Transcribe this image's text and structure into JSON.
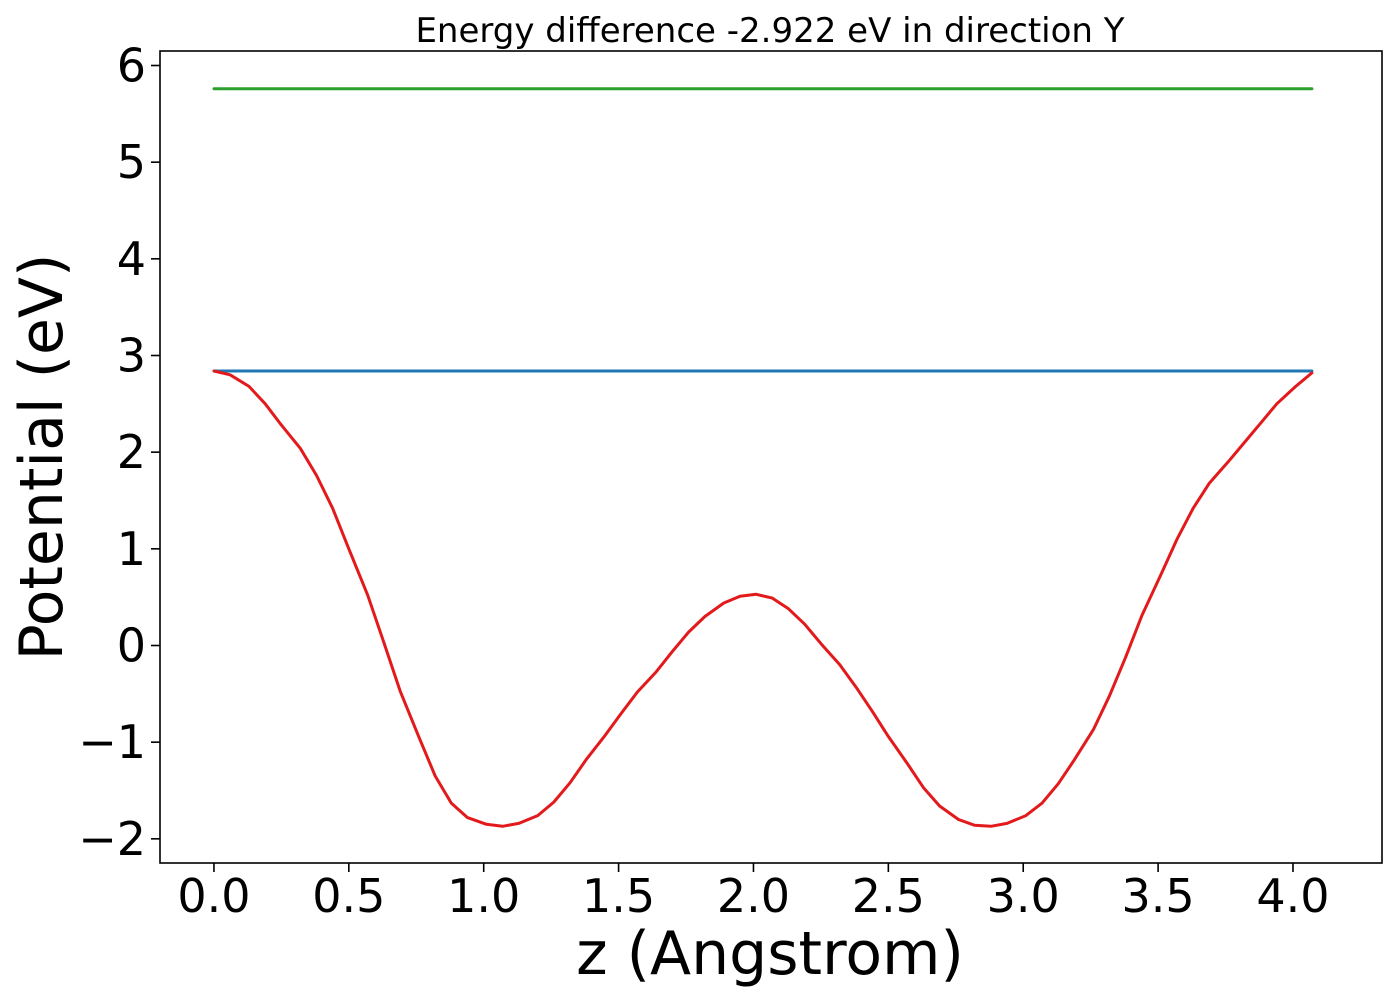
{
  "chart_data": {
    "type": "line",
    "title": "Energy difference -2.922 eV in direction Y",
    "xlabel": "z (Angstrom)",
    "ylabel": "Potential (eV)",
    "xlim": [
      -0.2,
      4.33
    ],
    "ylim": [
      -2.25,
      6.15
    ],
    "x_ticks": [
      0.0,
      0.5,
      1.0,
      1.5,
      2.0,
      2.5,
      3.0,
      3.5,
      4.0
    ],
    "x_tick_labels": [
      "0.0",
      "0.5",
      "1.0",
      "1.5",
      "2.0",
      "2.5",
      "3.0",
      "3.5",
      "4.0"
    ],
    "y_ticks": [
      -2,
      -1,
      0,
      1,
      2,
      3,
      4,
      5,
      6
    ],
    "y_tick_labels": [
      "−2",
      "−1",
      "0",
      "1",
      "2",
      "3",
      "4",
      "5",
      "6"
    ],
    "grid": false,
    "legend": "none",
    "series": [
      {
        "color": "#2ca02c",
        "x": [
          0.0,
          4.07
        ],
        "y": [
          5.76,
          5.76
        ]
      },
      {
        "color": "#1f77b4",
        "x": [
          0.0,
          4.07
        ],
        "y": [
          2.84,
          2.84
        ]
      },
      {
        "color": "#e31a1c",
        "x": [
          0.0,
          0.06,
          0.13,
          0.19,
          0.25,
          0.32,
          0.38,
          0.44,
          0.5,
          0.57,
          0.63,
          0.69,
          0.76,
          0.82,
          0.88,
          0.94,
          1.01,
          1.07,
          1.13,
          1.2,
          1.26,
          1.32,
          1.38,
          1.45,
          1.51,
          1.57,
          1.64,
          1.7,
          1.76,
          1.82,
          1.89,
          1.95,
          2.01,
          2.07,
          2.13,
          2.19,
          2.25,
          2.32,
          2.38,
          2.44,
          2.5,
          2.57,
          2.63,
          2.69,
          2.76,
          2.82,
          2.88,
          2.94,
          3.01,
          3.07,
          3.13,
          3.19,
          3.26,
          3.32,
          3.38,
          3.44,
          3.51,
          3.57,
          3.63,
          3.69,
          3.76,
          3.82,
          3.88,
          3.94,
          4.01,
          4.07
        ],
        "y": [
          2.84,
          2.8,
          2.68,
          2.5,
          2.28,
          2.04,
          1.76,
          1.42,
          1.0,
          0.52,
          0.03,
          -0.47,
          -0.95,
          -1.35,
          -1.63,
          -1.78,
          -1.85,
          -1.87,
          -1.84,
          -1.76,
          -1.62,
          -1.42,
          -1.18,
          -0.93,
          -0.7,
          -0.48,
          -0.27,
          -0.06,
          0.14,
          0.3,
          0.44,
          0.51,
          0.53,
          0.49,
          0.38,
          0.22,
          0.02,
          -0.2,
          -0.43,
          -0.68,
          -0.94,
          -1.22,
          -1.47,
          -1.66,
          -1.8,
          -1.86,
          -1.87,
          -1.84,
          -1.76,
          -1.63,
          -1.43,
          -1.18,
          -0.87,
          -0.52,
          -0.12,
          0.31,
          0.73,
          1.1,
          1.42,
          1.68,
          1.9,
          2.1,
          2.3,
          2.5,
          2.68,
          2.82
        ]
      }
    ]
  }
}
